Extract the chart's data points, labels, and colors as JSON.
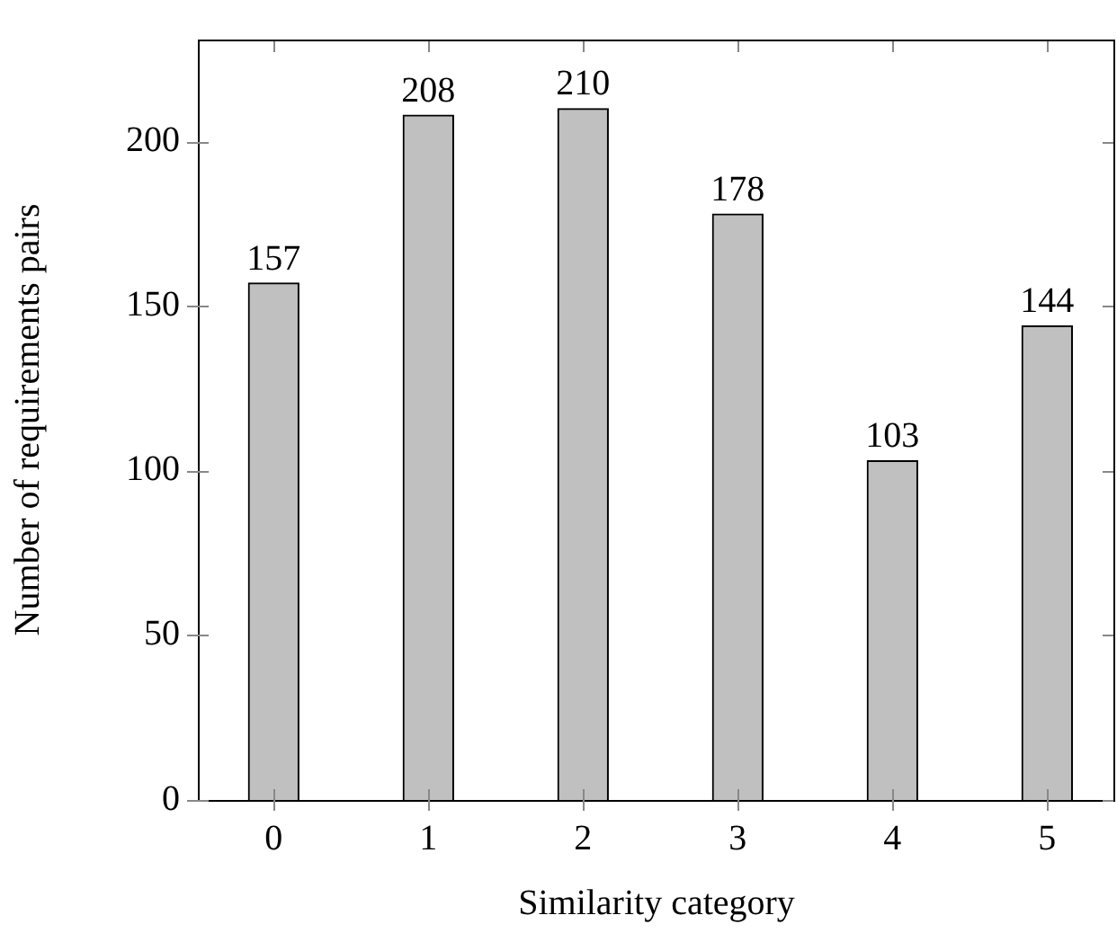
{
  "chart_data": {
    "type": "bar",
    "xlabel": "Similarity category",
    "ylabel": "Number of requirements pairs",
    "x": [
      0,
      1,
      2,
      3,
      4,
      5
    ],
    "values": [
      157,
      208,
      210,
      178,
      103,
      144
    ],
    "color": "#c0c0c0",
    "xlim": [
      -0.49,
      5.44
    ],
    "xticks": [
      0,
      1,
      2,
      3,
      4,
      5
    ],
    "ylim": [
      0,
      231
    ],
    "yticks": [
      0,
      50,
      100,
      150,
      200
    ],
    "data_labels": true,
    "grid": false,
    "legend": false
  }
}
